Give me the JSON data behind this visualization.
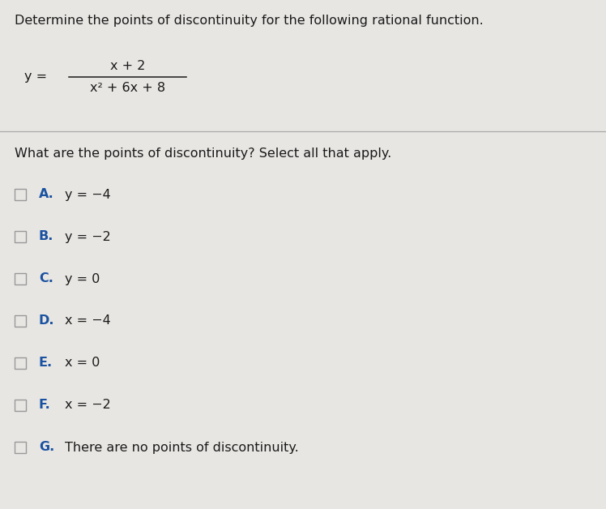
{
  "background_color": "#e8e6e3",
  "title_text": "Determine the points of discontinuity for the following rational function.",
  "title_fontsize": 11.5,
  "formula_numerator": "x + 2",
  "formula_denominator": "x² + 6x + 8",
  "question_text": "What are the points of discontinuity? Select all that apply.",
  "question_fontsize": 11.5,
  "options": [
    {
      "label": "A.",
      "text": "y = −4"
    },
    {
      "label": "B.",
      "text": "y = −2"
    },
    {
      "label": "C.",
      "text": "y = 0"
    },
    {
      "label": "D.",
      "text": "x = −4"
    },
    {
      "label": "E.",
      "text": "x = 0"
    },
    {
      "label": "F.",
      "text": "x = −2"
    },
    {
      "label": "G.",
      "text": "There are no points of discontinuity."
    }
  ],
  "option_fontsize": 11.5,
  "label_color": "#1a52a0",
  "text_color": "#1a1a1a",
  "separator_color": "#aaaaaa",
  "checkbox_edge_color": "#999999",
  "checkbox_face_color": "#e8e6e3"
}
